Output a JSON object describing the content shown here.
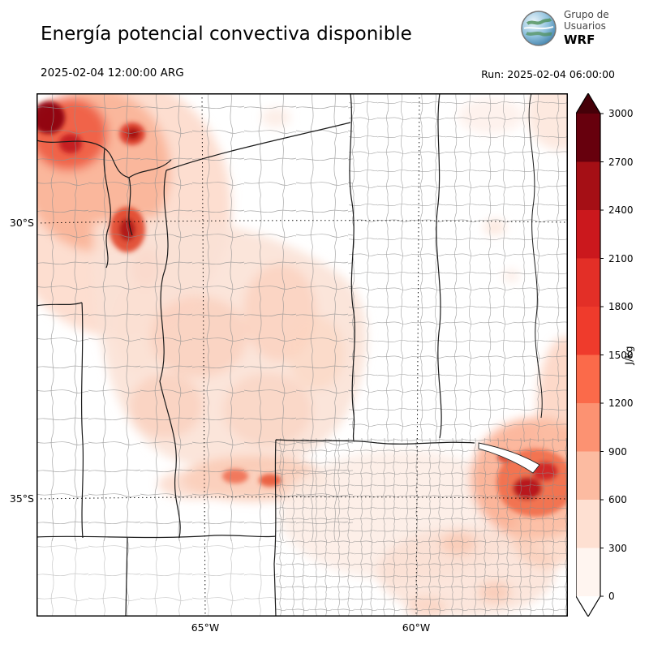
{
  "header": {
    "title": "Energía potencial convectiva disponible",
    "valid_time": "2025-02-04 12:00:00 ARG",
    "run_time": "Run: 2025-02-04 06:00:00"
  },
  "logo": {
    "line1": "Grupo de",
    "line2": "Usuarios",
    "line3": "WRF"
  },
  "map": {
    "lat_labels": [
      "30°S",
      "35°S"
    ],
    "lon_labels": [
      "65°W",
      "60°W"
    ]
  },
  "colorbar": {
    "unit": "J/kg",
    "ticks": [
      "3000",
      "2700",
      "2400",
      "2100",
      "1800",
      "1500",
      "1200",
      "900",
      "600",
      "300",
      "0"
    ],
    "colors": [
      "#67000d",
      "#a50f15",
      "#cb181d",
      "#e32f27",
      "#ef3b2c",
      "#fb6a4a",
      "#fc9272",
      "#fcbba1",
      "#fee0d2",
      "#fff5f0"
    ],
    "over_color": "#450008",
    "under_color": "#ffffff"
  }
}
